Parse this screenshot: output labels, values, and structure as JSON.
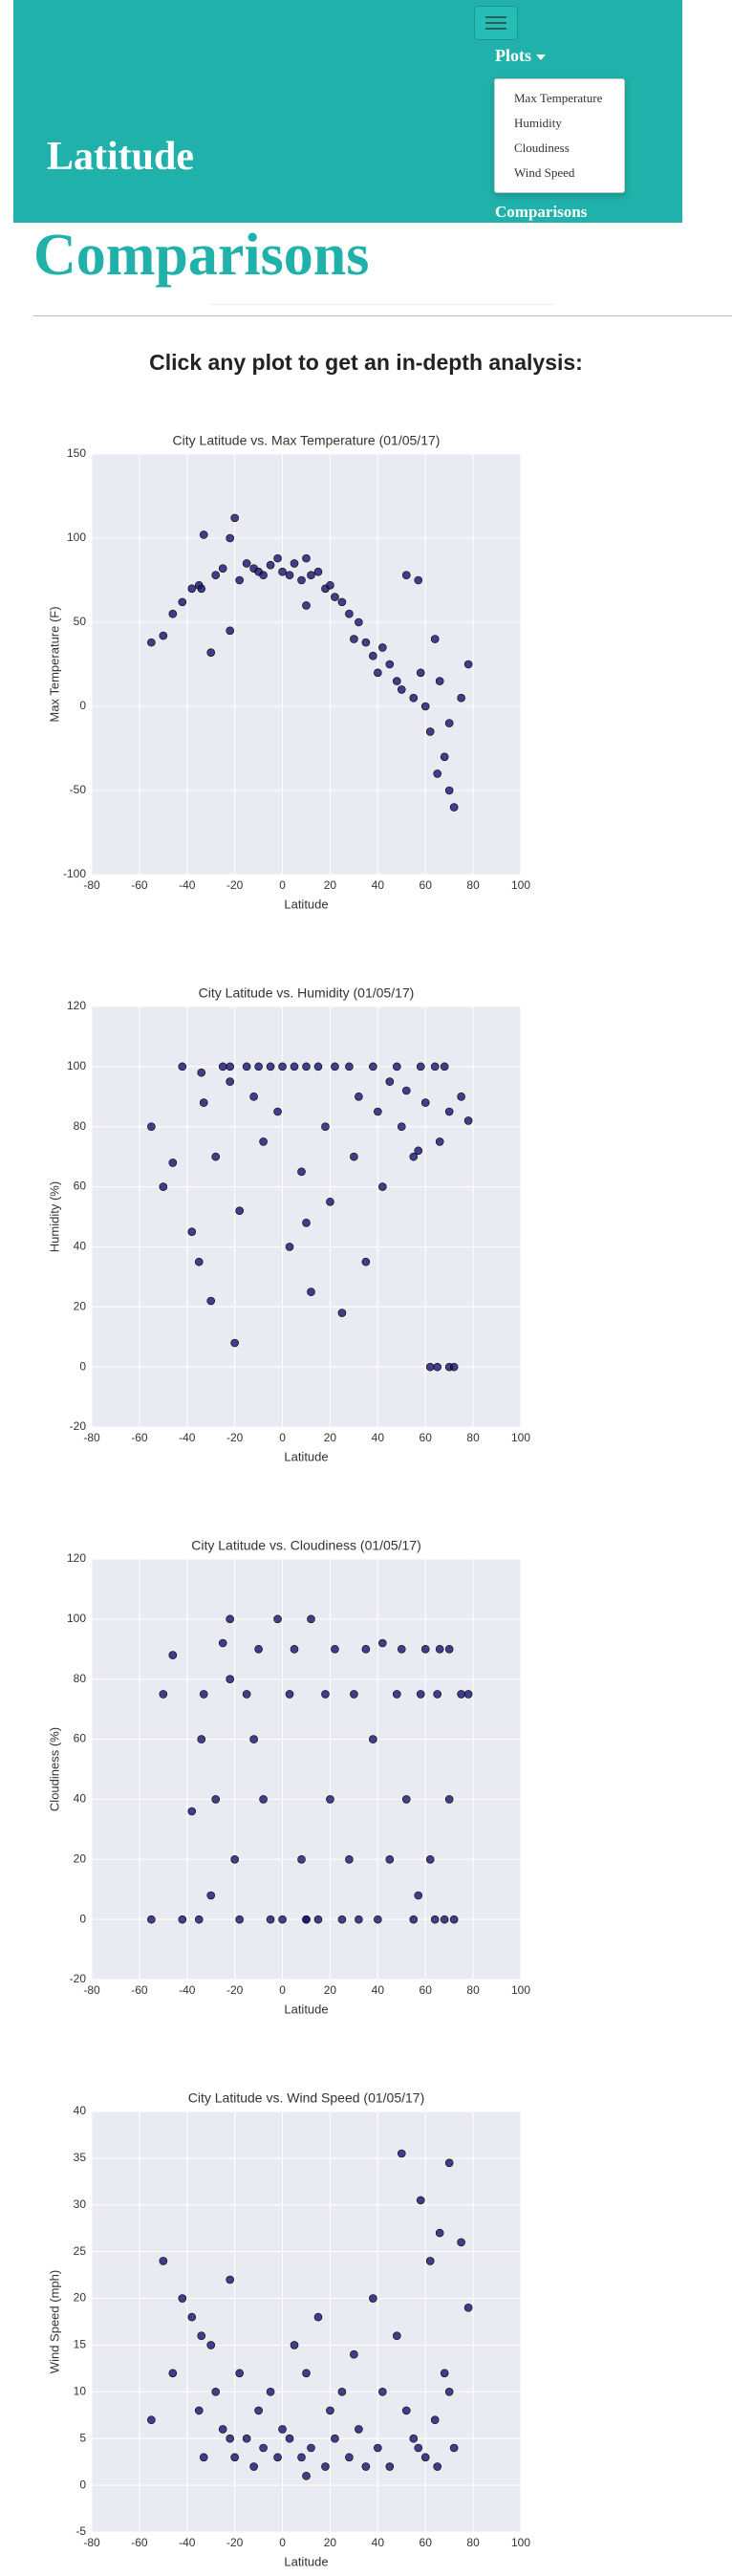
{
  "header": {
    "brand": "Latitude",
    "menu_toggle": "Plots",
    "menu_items": [
      "Max Temperature",
      "Humidity",
      "Cloudiness",
      "Wind Speed"
    ],
    "nav_link": "Comparisons"
  },
  "heading": "Comparisons",
  "intro": "Click any plot to get an in-depth analysis:",
  "chart_data": [
    {
      "type": "scatter",
      "title": "City Latitude vs. Max Temperature (01/05/17)",
      "x_label": "Latitude",
      "y_label": "Max Temperature (F)",
      "color": "#14146e",
      "grid": true,
      "xlim": [
        -80,
        100
      ],
      "xticks": [
        -80,
        -60,
        -40,
        -20,
        0,
        20,
        40,
        60,
        80,
        100
      ],
      "ylim": [
        -100,
        150
      ],
      "yticks": [
        -100,
        -50,
        0,
        50,
        100,
        150
      ],
      "x": [
        -55,
        -50,
        -46,
        -42,
        -38,
        -35,
        -33,
        -30,
        -28,
        -25,
        -22,
        -20,
        -18,
        -15,
        -12,
        -10,
        -8,
        -5,
        -2,
        0,
        3,
        5,
        8,
        10,
        12,
        15,
        18,
        20,
        22,
        25,
        28,
        30,
        32,
        35,
        38,
        40,
        42,
        45,
        48,
        50,
        52,
        55,
        58,
        60,
        62,
        64,
        65,
        66,
        68,
        70,
        70,
        72,
        75,
        78,
        -34,
        -22,
        10,
        57
      ],
      "values": [
        38,
        42,
        55,
        62,
        70,
        72,
        102,
        32,
        78,
        82,
        100,
        112,
        75,
        85,
        82,
        80,
        78,
        84,
        88,
        80,
        78,
        85,
        75,
        60,
        78,
        80,
        70,
        72,
        65,
        62,
        55,
        40,
        50,
        38,
        30,
        20,
        35,
        25,
        15,
        10,
        78,
        5,
        20,
        0,
        -15,
        40,
        -40,
        15,
        -30,
        -50,
        -10,
        -60,
        5,
        25,
        70,
        45,
        88,
        75
      ]
    },
    {
      "type": "scatter",
      "title": "City Latitude vs. Humidity (01/05/17)",
      "x_label": "Latitude",
      "y_label": "Humidity (%)",
      "color": "#14146e",
      "grid": true,
      "xlim": [
        -80,
        100
      ],
      "xticks": [
        -80,
        -60,
        -40,
        -20,
        0,
        20,
        40,
        60,
        80,
        100
      ],
      "ylim": [
        -20,
        120
      ],
      "yticks": [
        -20,
        0,
        20,
        40,
        60,
        80,
        100,
        120
      ],
      "x": [
        -55,
        -50,
        -46,
        -42,
        -38,
        -35,
        -33,
        -30,
        -28,
        -25,
        -22,
        -20,
        -18,
        -15,
        -12,
        -10,
        -8,
        -5,
        -2,
        0,
        3,
        5,
        8,
        10,
        12,
        15,
        18,
        20,
        22,
        25,
        28,
        30,
        32,
        35,
        38,
        40,
        42,
        45,
        48,
        50,
        52,
        55,
        58,
        60,
        62,
        64,
        65,
        66,
        68,
        70,
        70,
        72,
        75,
        78,
        -34,
        -22,
        10,
        57
      ],
      "values": [
        80,
        60,
        68,
        100,
        45,
        35,
        88,
        22,
        70,
        100,
        95,
        8,
        52,
        100,
        90,
        100,
        75,
        100,
        85,
        100,
        40,
        100,
        65,
        100,
        25,
        100,
        80,
        55,
        100,
        18,
        100,
        70,
        90,
        35,
        100,
        85,
        60,
        95,
        100,
        80,
        92,
        70,
        100,
        88,
        0,
        100,
        0,
        75,
        100,
        0,
        85,
        0,
        90,
        82,
        98,
        100,
        48,
        72
      ]
    },
    {
      "type": "scatter",
      "title": "City Latitude vs. Cloudiness (01/05/17)",
      "x_label": "Latitude",
      "y_label": "Cloudiness (%)",
      "color": "#14146e",
      "grid": true,
      "xlim": [
        -80,
        100
      ],
      "xticks": [
        -80,
        -60,
        -40,
        -20,
        0,
        20,
        40,
        60,
        80,
        100
      ],
      "ylim": [
        -20,
        120
      ],
      "yticks": [
        -20,
        0,
        20,
        40,
        60,
        80,
        100,
        120
      ],
      "x": [
        -55,
        -50,
        -46,
        -42,
        -38,
        -35,
        -33,
        -30,
        -28,
        -25,
        -22,
        -20,
        -18,
        -15,
        -12,
        -10,
        -8,
        -5,
        -2,
        0,
        3,
        5,
        8,
        10,
        12,
        15,
        18,
        20,
        22,
        25,
        28,
        30,
        32,
        35,
        38,
        40,
        42,
        45,
        48,
        50,
        52,
        55,
        58,
        60,
        62,
        64,
        65,
        66,
        68,
        70,
        70,
        72,
        75,
        78,
        -34,
        -22,
        10,
        57
      ],
      "values": [
        0,
        75,
        88,
        0,
        36,
        0,
        75,
        8,
        40,
        92,
        100,
        20,
        0,
        75,
        60,
        90,
        40,
        0,
        100,
        0,
        75,
        90,
        20,
        0,
        100,
        0,
        75,
        40,
        90,
        0,
        20,
        75,
        0,
        90,
        60,
        0,
        92,
        20,
        75,
        90,
        40,
        0,
        75,
        90,
        20,
        0,
        75,
        90,
        0,
        40,
        90,
        0,
        75,
        75,
        60,
        80,
        0,
        8
      ]
    },
    {
      "type": "scatter",
      "title": "City Latitude vs. Wind Speed (01/05/17)",
      "x_label": "Latitude",
      "y_label": "Wind Speed (mph)",
      "color": "#14146e",
      "grid": true,
      "xlim": [
        -80,
        100
      ],
      "xticks": [
        -80,
        -60,
        -40,
        -20,
        0,
        20,
        40,
        60,
        80,
        100
      ],
      "ylim": [
        -5,
        40
      ],
      "yticks": [
        -5,
        0,
        5,
        10,
        15,
        20,
        25,
        30,
        35,
        40
      ],
      "x": [
        -55,
        -50,
        -46,
        -42,
        -38,
        -35,
        -33,
        -30,
        -28,
        -25,
        -22,
        -20,
        -18,
        -15,
        -12,
        -10,
        -8,
        -5,
        -2,
        0,
        3,
        5,
        8,
        10,
        12,
        15,
        18,
        20,
        22,
        25,
        28,
        30,
        32,
        35,
        38,
        40,
        42,
        45,
        48,
        50,
        52,
        55,
        58,
        60,
        62,
        64,
        65,
        66,
        68,
        70,
        70,
        72,
        75,
        78,
        -34,
        -22,
        10,
        57
      ],
      "values": [
        7,
        24,
        12,
        20,
        18,
        8,
        3,
        15,
        10,
        6,
        22,
        3,
        12,
        5,
        2,
        8,
        4,
        10,
        3,
        6,
        5,
        15,
        3,
        12,
        4,
        18,
        2,
        8,
        5,
        10,
        3,
        14,
        6,
        2,
        20,
        4,
        10,
        2,
        16,
        35.5,
        8,
        5,
        30.5,
        3,
        24,
        7,
        2,
        27,
        12,
        10,
        34.5,
        4,
        26,
        19,
        16,
        5,
        1,
        4
      ]
    }
  ]
}
